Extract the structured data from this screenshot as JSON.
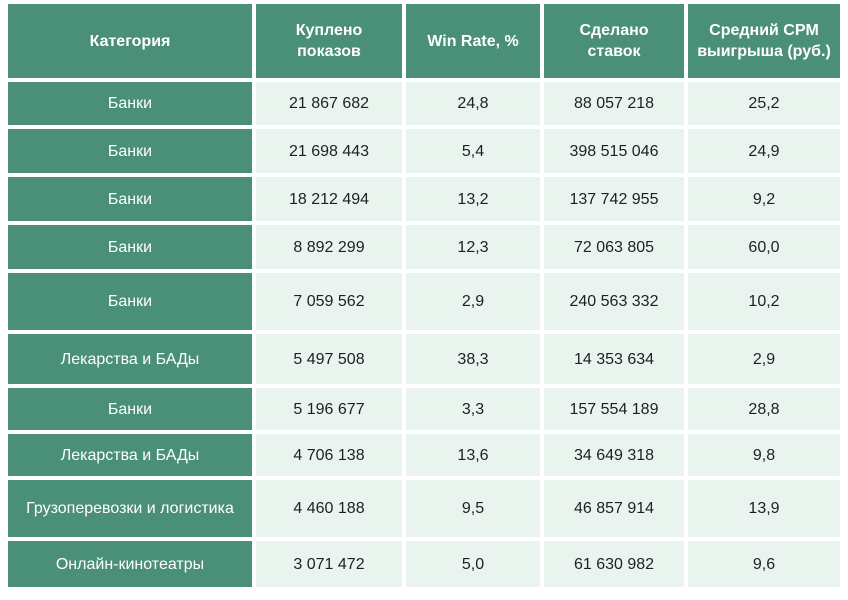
{
  "headers": {
    "category": "Категория",
    "impressions": "Куплено показов",
    "win_rate": "Win Rate, %",
    "bids": "Сделано ставок",
    "cpm": "Средний CPM выигрыша (руб.)"
  },
  "rows": [
    {
      "category": "Банки",
      "impressions": "21 867 682",
      "win_rate": "24,8",
      "bids": "88 057 218",
      "cpm": "25,2"
    },
    {
      "category": "Банки",
      "impressions": "21 698 443",
      "win_rate": "5,4",
      "bids": "398 515 046",
      "cpm": "24,9"
    },
    {
      "category": "Банки",
      "impressions": "18 212 494",
      "win_rate": "13,2",
      "bids": "137 742 955",
      "cpm": "9,2"
    },
    {
      "category": "Банки",
      "impressions": "8 892 299",
      "win_rate": "12,3",
      "bids": "72 063 805",
      "cpm": "60,0"
    },
    {
      "category": "Банки",
      "impressions": "7 059 562",
      "win_rate": "2,9",
      "bids": "240 563 332",
      "cpm": "10,2"
    },
    {
      "category": "Лекарства и БАДы",
      "impressions": "5 497 508",
      "win_rate": "38,3",
      "bids": "14 353 634",
      "cpm": "2,9"
    },
    {
      "category": "Банки",
      "impressions": "5 196 677",
      "win_rate": "3,3",
      "bids": "157 554 189",
      "cpm": "28,8"
    },
    {
      "category": "Лекарства и БАДы",
      "impressions": "4 706 138",
      "win_rate": "13,6",
      "bids": "34 649 318",
      "cpm": "9,8"
    },
    {
      "category": "Грузоперевозки и логистика",
      "impressions": "4 460 188",
      "win_rate": "9,5",
      "bids": "46 857 914",
      "cpm": "13,9"
    },
    {
      "category": "Онлайн-кинотеатры",
      "impressions": "3 071 472",
      "win_rate": "5,0",
      "bids": "61 630 982",
      "cpm": "9,6"
    }
  ],
  "colors": {
    "header_bg": "#4a8f77",
    "cell_bg": "#e9f4ef",
    "header_text": "#ffffff",
    "cell_text": "#1f1f1f"
  }
}
